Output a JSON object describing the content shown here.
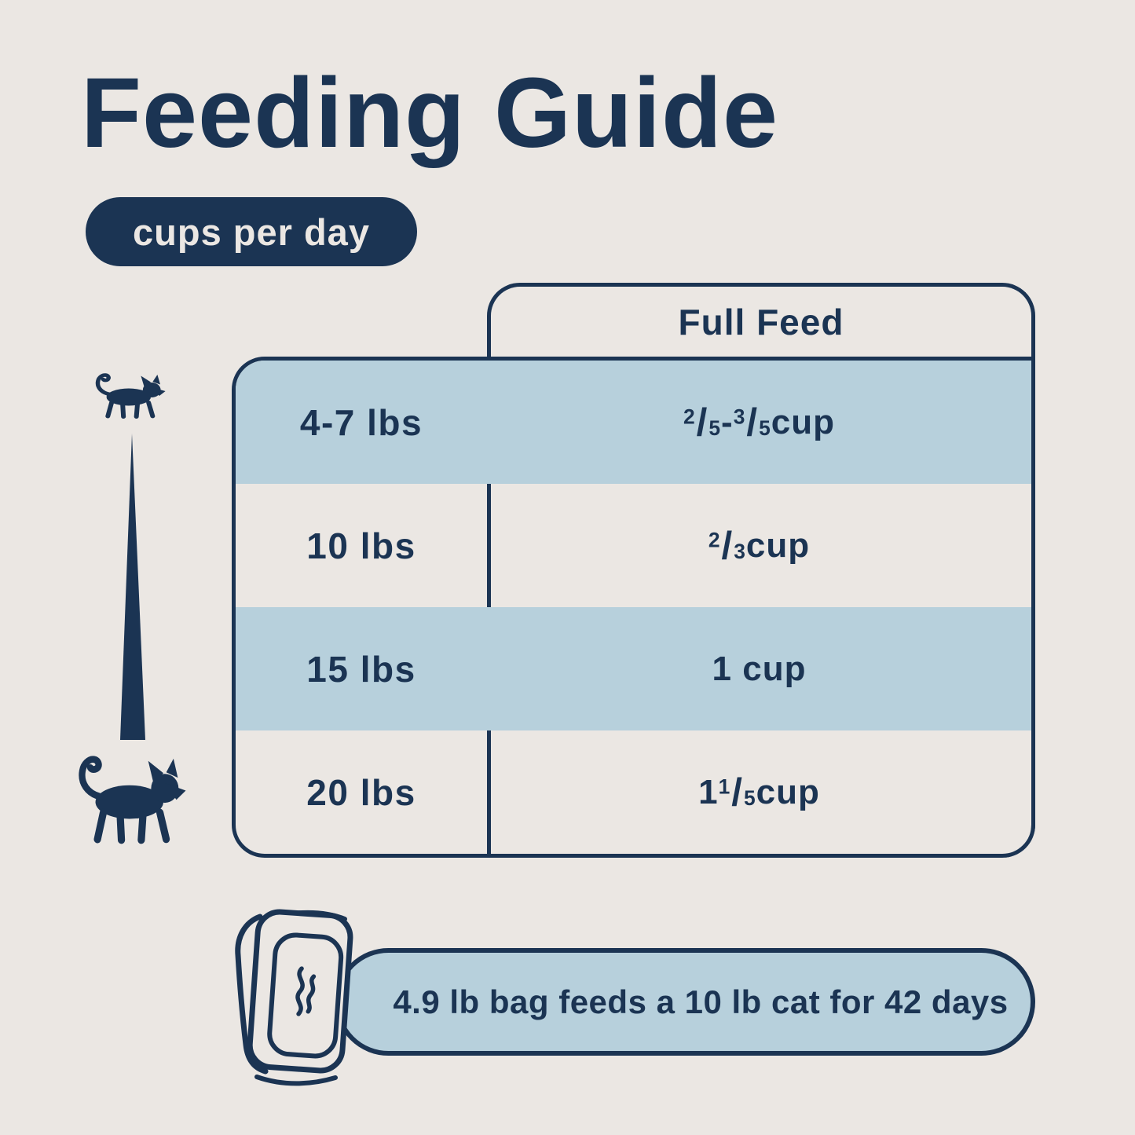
{
  "page": {
    "title": "Feeding Guide",
    "badge_label": "cups per day",
    "colors": {
      "background": "#ebe7e3",
      "navy": "#1b3453",
      "light_blue": "#b7d0dc"
    }
  },
  "table": {
    "column_header": "Full Feed",
    "rows": [
      {
        "weight": "4-7 lbs",
        "amount_segments": [
          {
            "frac": {
              "num": "2",
              "den": "5"
            }
          },
          {
            "text": " - "
          },
          {
            "frac": {
              "num": "3",
              "den": "5"
            }
          },
          {
            "text": " cup"
          }
        ]
      },
      {
        "weight": "10 lbs",
        "amount_segments": [
          {
            "frac": {
              "num": "2",
              "den": "3"
            }
          },
          {
            "text": " cup"
          }
        ]
      },
      {
        "weight": "15 lbs",
        "amount_segments": [
          {
            "text": "1 cup"
          }
        ]
      },
      {
        "weight": "20 lbs",
        "amount_segments": [
          {
            "text": "1 "
          },
          {
            "frac": {
              "num": "1",
              "den": "5"
            }
          },
          {
            "text": " cup"
          }
        ]
      }
    ]
  },
  "footer": {
    "bag_note": "4.9 lb bag feeds a 10 lb cat for 42 days"
  },
  "icons": {
    "small_cat": "small-cat-icon",
    "scale_wedge": "size-scale-wedge",
    "large_cat": "large-cat-icon",
    "food_bag": "food-bag-icon",
    "steam": "steam-icon"
  }
}
